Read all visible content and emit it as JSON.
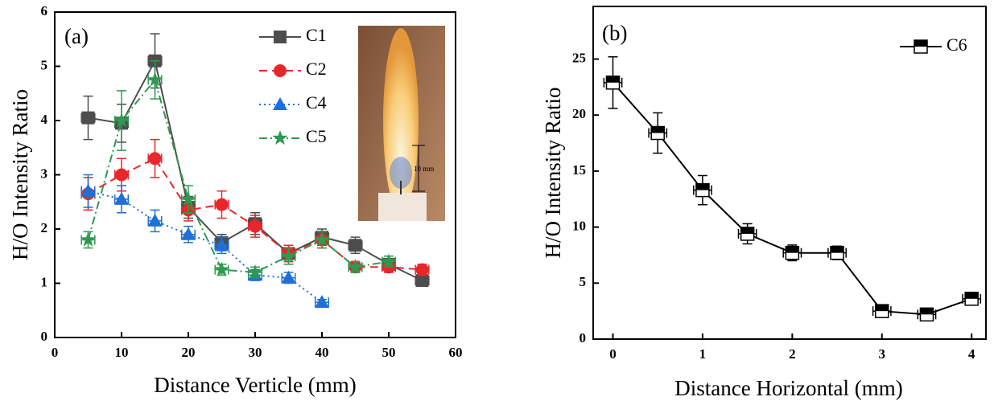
{
  "chart_data": [
    {
      "type": "line",
      "panel_label": "(a)",
      "x_label": "Distance Verticle (mm)",
      "y_label": "H/O Intensity Ratio",
      "inset_text": "10 mm",
      "xlim": [
        0,
        60
      ],
      "ylim": [
        0,
        6
      ],
      "xticks": [
        0,
        10,
        20,
        30,
        40,
        50,
        60
      ],
      "yticks": [
        0,
        1,
        2,
        3,
        4,
        5,
        6
      ],
      "legend": "upper right",
      "series": [
        {
          "name": "C1",
          "color": "#4d4d4d",
          "marker": "square",
          "dash": "solid",
          "x": [
            5,
            10,
            15,
            20,
            25,
            30,
            35,
            40,
            45,
            50,
            55
          ],
          "values": [
            4.05,
            3.95,
            5.1,
            2.4,
            1.75,
            2.1,
            1.55,
            1.85,
            1.7,
            1.35,
            1.05
          ],
          "yerr": [
            0.4,
            0.35,
            0.5,
            0.2,
            0.15,
            0.2,
            0.15,
            0.15,
            0.15,
            0.1,
            0.1
          ],
          "xerr": [
            1,
            1,
            1,
            1,
            1,
            1,
            1,
            1,
            1,
            1,
            1
          ]
        },
        {
          "name": "C2",
          "color": "#e8262b",
          "marker": "circle",
          "dash": "dashed",
          "x": [
            5,
            10,
            15,
            20,
            25,
            30,
            35,
            40,
            45,
            50,
            55
          ],
          "values": [
            2.65,
            3.0,
            3.3,
            2.35,
            2.45,
            2.05,
            1.55,
            1.8,
            1.3,
            1.3,
            1.25
          ],
          "yerr": [
            0.3,
            0.3,
            0.35,
            0.2,
            0.25,
            0.2,
            0.15,
            0.15,
            0.1,
            0.1,
            0.1
          ],
          "xerr": [
            1,
            1,
            1,
            1,
            1,
            1,
            1,
            1,
            1,
            1,
            1
          ]
        },
        {
          "name": "C4",
          "color": "#1f6fd6",
          "marker": "triangle",
          "dash": "dotted",
          "x": [
            5,
            10,
            15,
            20,
            25,
            30,
            35,
            40
          ],
          "values": [
            2.7,
            2.55,
            2.15,
            1.9,
            1.7,
            1.15,
            1.1,
            0.65
          ],
          "yerr": [
            0.3,
            0.25,
            0.2,
            0.15,
            0.15,
            0.1,
            0.1,
            0.05
          ],
          "xerr": [
            1,
            1,
            1,
            1,
            1,
            1,
            1,
            1
          ]
        },
        {
          "name": "C5",
          "color": "#2e9a4f",
          "marker": "star",
          "dash": "dashdot",
          "x": [
            5,
            10,
            15,
            20,
            25,
            30,
            35,
            40,
            45,
            50
          ],
          "values": [
            1.8,
            4.0,
            4.75,
            2.55,
            1.25,
            1.2,
            1.5,
            1.8,
            1.3,
            1.4
          ],
          "yerr": [
            0.15,
            0.55,
            0.35,
            0.25,
            0.1,
            0.1,
            0.15,
            0.15,
            0.1,
            0.1
          ],
          "xerr": [
            1,
            1,
            1,
            1,
            1,
            1,
            1,
            1,
            1,
            1
          ]
        }
      ]
    },
    {
      "type": "line",
      "panel_label": "(b)",
      "x_label": "Distance Horizontal (mm)",
      "y_label": "H/O Intensity Ratio",
      "xlim": [
        -0.22,
        4.16
      ],
      "ylim": [
        0,
        29.7
      ],
      "xticks": [
        0,
        1,
        2,
        3,
        4
      ],
      "yticks": [
        0,
        5,
        10,
        15,
        20,
        25
      ],
      "legend": "upper right",
      "series": [
        {
          "name": "C6",
          "color": "#000000",
          "marker": "halfsquare",
          "dash": "solid",
          "x": [
            0,
            0.5,
            1,
            1.5,
            2,
            2.5,
            3,
            3.5,
            4
          ],
          "values": [
            22.9,
            18.4,
            13.3,
            9.4,
            7.7,
            7.7,
            2.5,
            2.2,
            3.6
          ],
          "yerr": [
            2.3,
            1.8,
            1.3,
            0.9,
            0.7,
            0.6,
            0.4,
            0.4,
            0.4
          ],
          "xerr": [
            0.1,
            0.1,
            0.1,
            0.1,
            0.1,
            0.1,
            0.1,
            0.1,
            0.1
          ]
        }
      ]
    }
  ]
}
